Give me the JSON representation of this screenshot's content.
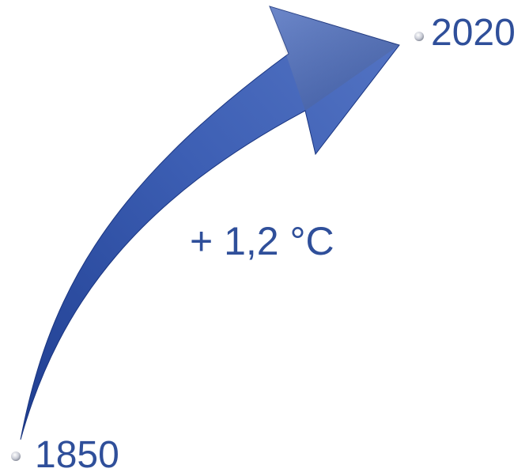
{
  "diagram": {
    "start_label": "1850",
    "end_label": "2020",
    "change_label": "+ 1,2 °C"
  },
  "colors": {
    "arrow_dark": "#1f3e91",
    "arrow_mid": "#3d5fb4",
    "arrow_light": "#6b86cc",
    "text": "#2f4f9a"
  },
  "icons": {
    "start_marker": "bead-icon",
    "end_marker": "bead-icon"
  }
}
